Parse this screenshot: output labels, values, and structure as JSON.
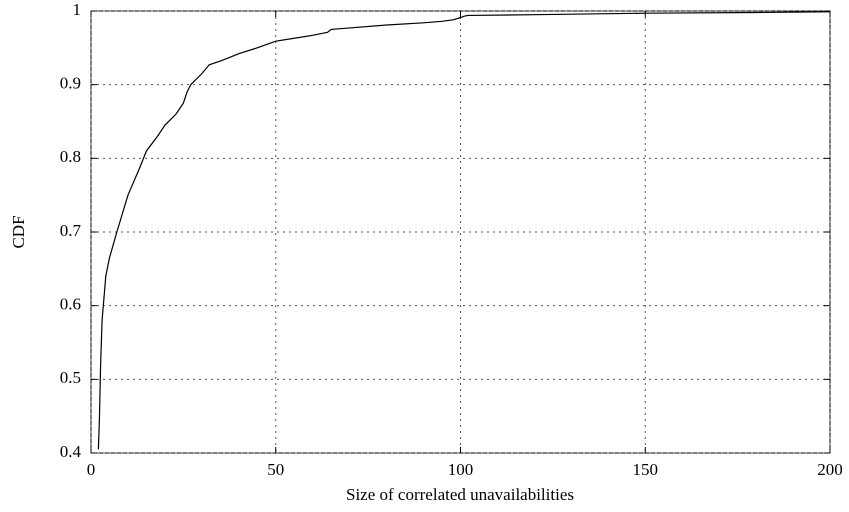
{
  "chart_data": {
    "type": "line",
    "x_label": "Size of correlated unavailabilities",
    "y_label": "CDF",
    "x": [
      2,
      2.3,
      2.6,
      3,
      4,
      5,
      7,
      10,
      13,
      15,
      18,
      20,
      23,
      25,
      26,
      27,
      28,
      30,
      32,
      35,
      38,
      40,
      45,
      50,
      55,
      60,
      62,
      64,
      65,
      70,
      80,
      90,
      95,
      98,
      100,
      101,
      102,
      120,
      150,
      180,
      200
    ],
    "values": [
      0.405,
      0.45,
      0.52,
      0.58,
      0.64,
      0.665,
      0.7,
      0.75,
      0.785,
      0.81,
      0.83,
      0.845,
      0.86,
      0.875,
      0.89,
      0.9,
      0.905,
      0.915,
      0.927,
      0.932,
      0.938,
      0.942,
      0.95,
      0.959,
      0.963,
      0.967,
      0.969,
      0.971,
      0.975,
      0.977,
      0.981,
      0.984,
      0.986,
      0.988,
      0.991,
      0.993,
      0.994,
      0.995,
      0.997,
      0.998,
      0.999
    ],
    "color": "#000000",
    "xlim": [
      0,
      200
    ],
    "xticks": [
      0,
      50,
      100,
      150,
      200
    ],
    "ylim": [
      0.4,
      1
    ],
    "yticks": [
      0.4,
      0.5,
      0.6,
      0.7,
      0.8,
      0.9,
      1
    ],
    "grid": true
  }
}
